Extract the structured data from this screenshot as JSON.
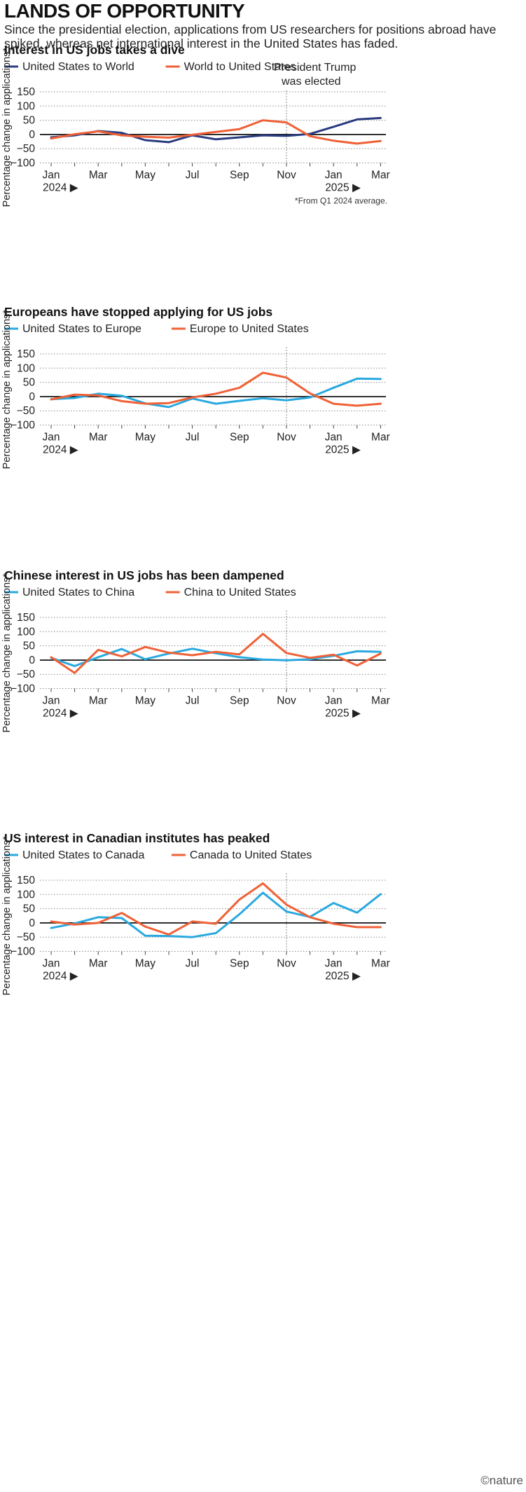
{
  "header": {
    "title": "LANDS OF OPPORTUNITY",
    "subtitle": "Since the presidential election, applications from US researchers for positions abroad have spiked, whereas net international interest in the United States has faded."
  },
  "annotation": {
    "line1": "President Trump",
    "line2": "was elected"
  },
  "footnote": "*From Q1 2024 average.",
  "credit": "©nature",
  "colors": {
    "navy": "#2a3b80",
    "orange": "#ef6137",
    "cyan": "#29a9df",
    "grid": "#8a8a8a",
    "zero": "#000000"
  },
  "chart_data": [
    {
      "type": "line",
      "title": "Interest in US jobs takes a dive",
      "ylabel": "Percentage change in applications*",
      "ylim": [
        -100,
        150
      ],
      "yticks": [
        "150",
        "100",
        "50",
        "0",
        "−50",
        "−100"
      ],
      "xticks": [
        "Jan",
        "Mar",
        "May",
        "Jul",
        "Sep",
        "Nov",
        "Jan",
        "Mar"
      ],
      "year_labels": [
        "2024 ▶",
        "2025 ▶"
      ],
      "x": [
        "Jan 2024",
        "Feb 2024",
        "Mar 2024",
        "Apr 2024",
        "May 2024",
        "Jun 2024",
        "Jul 2024",
        "Aug 2024",
        "Sep 2024",
        "Oct 2024",
        "Nov 2024",
        "Dec 2024",
        "Jan 2025",
        "Feb 2025",
        "Mar 2025"
      ],
      "series": [
        {
          "name": "United States to World",
          "color": "#2a3b80",
          "values": [
            -10,
            -3,
            12,
            6,
            -20,
            -27,
            -3,
            -17,
            -10,
            -3,
            -5,
            2,
            27,
            53,
            58
          ]
        },
        {
          "name": "World to United States",
          "color": "#ef6137",
          "values": [
            -14,
            1,
            11,
            -3,
            -8,
            -11,
            -1,
            9,
            19,
            50,
            42,
            -6,
            -22,
            -32,
            -23
          ]
        }
      ]
    },
    {
      "type": "line",
      "title": "Europeans have stopped applying for US jobs",
      "ylabel": "Percentage change in applications*",
      "ylim": [
        -100,
        150
      ],
      "yticks": [
        "150",
        "100",
        "50",
        "0",
        "−50",
        "−100"
      ],
      "xticks": [
        "Jan",
        "Mar",
        "May",
        "Jul",
        "Sep",
        "Nov",
        "Jan",
        "Mar"
      ],
      "year_labels": [
        "2024 ▶",
        "2025 ▶"
      ],
      "x": [
        "Jan 2024",
        "Feb 2024",
        "Mar 2024",
        "Apr 2024",
        "May 2024",
        "Jun 2024",
        "Jul 2024",
        "Aug 2024",
        "Sep 2024",
        "Oct 2024",
        "Nov 2024",
        "Dec 2024",
        "Jan 2025",
        "Feb 2025",
        "Mar 2025"
      ],
      "series": [
        {
          "name": "United States to Europe",
          "color": "#29a9df",
          "values": [
            -9,
            -5,
            10,
            3,
            -24,
            -37,
            -7,
            -25,
            -15,
            -6,
            -13,
            -3,
            31,
            63,
            62
          ]
        },
        {
          "name": "Europe to United States",
          "color": "#ef6137",
          "values": [
            -10,
            7,
            4,
            -16,
            -25,
            -23,
            -3,
            10,
            31,
            84,
            67,
            11,
            -25,
            -32,
            -25
          ]
        }
      ]
    },
    {
      "type": "line",
      "title": "Chinese interest in US jobs has been dampened",
      "ylabel": "Percentage change in applications*",
      "ylim": [
        -100,
        150
      ],
      "yticks": [
        "150",
        "100",
        "50",
        "0",
        "−50",
        "−100"
      ],
      "xticks": [
        "Jan",
        "Mar",
        "May",
        "Jul",
        "Sep",
        "Nov",
        "Jan",
        "Mar"
      ],
      "year_labels": [
        "2024 ▶",
        "2025 ▶"
      ],
      "x": [
        "Jan 2024",
        "Feb 2024",
        "Mar 2024",
        "Apr 2024",
        "May 2024",
        "Jun 2024",
        "Jul 2024",
        "Aug 2024",
        "Sep 2024",
        "Oct 2024",
        "Nov 2024",
        "Dec 2024",
        "Jan 2025",
        "Feb 2025",
        "Mar 2025"
      ],
      "series": [
        {
          "name": "United States to China",
          "color": "#29a9df",
          "values": [
            8,
            -21,
            10,
            39,
            3,
            23,
            40,
            24,
            10,
            2,
            -1,
            3,
            15,
            31,
            29
          ]
        },
        {
          "name": "China to United States",
          "color": "#ef6137",
          "values": [
            10,
            -45,
            36,
            13,
            46,
            26,
            17,
            29,
            20,
            92,
            25,
            8,
            19,
            -19,
            23
          ]
        }
      ]
    },
    {
      "type": "line",
      "title": "US interest in Canadian institutes has peaked",
      "ylabel": "Percentage change in applications*",
      "ylim": [
        -100,
        150
      ],
      "yticks": [
        "150",
        "100",
        "50",
        "0",
        "−50",
        "−100"
      ],
      "xticks": [
        "Jan",
        "Mar",
        "May",
        "Jul",
        "Sep",
        "Nov",
        "Jan",
        "Mar"
      ],
      "year_labels": [
        "2024 ▶",
        "2025 ▶"
      ],
      "x": [
        "Jan 2024",
        "Feb 2024",
        "Mar 2024",
        "Apr 2024",
        "May 2024",
        "Jun 2024",
        "Jul 2024",
        "Aug 2024",
        "Sep 2024",
        "Oct 2024",
        "Nov 2024",
        "Dec 2024",
        "Jan 2025",
        "Feb 2025",
        "Mar 2025"
      ],
      "series": [
        {
          "name": "United States to Canada",
          "color": "#29a9df",
          "values": [
            -18,
            -2,
            20,
            17,
            -45,
            -46,
            -50,
            -36,
            30,
            106,
            40,
            21,
            70,
            36,
            101
          ]
        },
        {
          "name": "Canada to United States",
          "color": "#ef6137",
          "values": [
            5,
            -6,
            0,
            35,
            -13,
            -41,
            5,
            -3,
            82,
            139,
            64,
            20,
            -3,
            -15,
            -15
          ]
        }
      ]
    }
  ]
}
